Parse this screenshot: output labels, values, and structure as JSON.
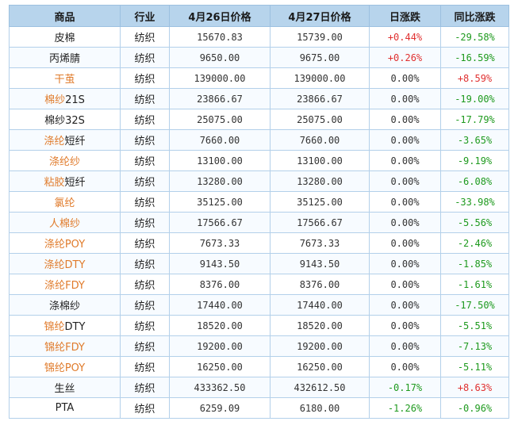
{
  "table": {
    "headers": [
      "商品",
      "行业",
      "4月26日价格",
      "4月27日价格",
      "日涨跌",
      "同比涨跌"
    ],
    "colors": {
      "header_bg": "#b7d4ec",
      "link_orange": "#e07b2b",
      "rise_red": "#e03030",
      "fall_green": "#1e9a1e"
    },
    "rows": [
      {
        "name": [
          {
            "t": "皮棉",
            "c": "black"
          }
        ],
        "industry": "纺织",
        "price_0426": "15670.83",
        "price_0427": "15739.00",
        "daily_change": "+0.44%",
        "yoy_change": "-29.58%"
      },
      {
        "name": [
          {
            "t": "丙烯腈",
            "c": "black"
          }
        ],
        "industry": "纺织",
        "price_0426": "9650.00",
        "price_0427": "9675.00",
        "daily_change": "+0.26%",
        "yoy_change": "-16.59%"
      },
      {
        "name": [
          {
            "t": "干茧",
            "c": "orange"
          }
        ],
        "industry": "纺织",
        "price_0426": "139000.00",
        "price_0427": "139000.00",
        "daily_change": "0.00%",
        "yoy_change": "+8.59%"
      },
      {
        "name": [
          {
            "t": "棉纱",
            "c": "orange"
          },
          {
            "t": "21S",
            "c": "black"
          }
        ],
        "industry": "纺织",
        "price_0426": "23866.67",
        "price_0427": "23866.67",
        "daily_change": "0.00%",
        "yoy_change": "-19.00%"
      },
      {
        "name": [
          {
            "t": "棉纱32S",
            "c": "black"
          }
        ],
        "industry": "纺织",
        "price_0426": "25075.00",
        "price_0427": "25075.00",
        "daily_change": "0.00%",
        "yoy_change": "-17.79%"
      },
      {
        "name": [
          {
            "t": "涤纶",
            "c": "orange"
          },
          {
            "t": "短纤",
            "c": "black"
          }
        ],
        "industry": "纺织",
        "price_0426": "7660.00",
        "price_0427": "7660.00",
        "daily_change": "0.00%",
        "yoy_change": "-3.65%"
      },
      {
        "name": [
          {
            "t": "涤纶纱",
            "c": "orange"
          }
        ],
        "industry": "纺织",
        "price_0426": "13100.00",
        "price_0427": "13100.00",
        "daily_change": "0.00%",
        "yoy_change": "-9.19%"
      },
      {
        "name": [
          {
            "t": "粘胶",
            "c": "orange"
          },
          {
            "t": "短纤",
            "c": "black"
          }
        ],
        "industry": "纺织",
        "price_0426": "13280.00",
        "price_0427": "13280.00",
        "daily_change": "0.00%",
        "yoy_change": "-6.08%"
      },
      {
        "name": [
          {
            "t": "氯纶",
            "c": "orange"
          }
        ],
        "industry": "纺织",
        "price_0426": "35125.00",
        "price_0427": "35125.00",
        "daily_change": "0.00%",
        "yoy_change": "-33.98%"
      },
      {
        "name": [
          {
            "t": "人棉纱",
            "c": "orange"
          }
        ],
        "industry": "纺织",
        "price_0426": "17566.67",
        "price_0427": "17566.67",
        "daily_change": "0.00%",
        "yoy_change": "-5.56%"
      },
      {
        "name": [
          {
            "t": "涤纶POY",
            "c": "orange"
          }
        ],
        "industry": "纺织",
        "price_0426": "7673.33",
        "price_0427": "7673.33",
        "daily_change": "0.00%",
        "yoy_change": "-2.46%"
      },
      {
        "name": [
          {
            "t": "涤纶DTY",
            "c": "orange"
          }
        ],
        "industry": "纺织",
        "price_0426": "9143.50",
        "price_0427": "9143.50",
        "daily_change": "0.00%",
        "yoy_change": "-1.85%"
      },
      {
        "name": [
          {
            "t": "涤纶FDY",
            "c": "orange"
          }
        ],
        "industry": "纺织",
        "price_0426": "8376.00",
        "price_0427": "8376.00",
        "daily_change": "0.00%",
        "yoy_change": "-1.61%"
      },
      {
        "name": [
          {
            "t": "涤棉纱",
            "c": "black"
          }
        ],
        "industry": "纺织",
        "price_0426": "17440.00",
        "price_0427": "17440.00",
        "daily_change": "0.00%",
        "yoy_change": "-17.50%"
      },
      {
        "name": [
          {
            "t": "锦纶",
            "c": "orange"
          },
          {
            "t": "DTY",
            "c": "black"
          }
        ],
        "industry": "纺织",
        "price_0426": "18520.00",
        "price_0427": "18520.00",
        "daily_change": "0.00%",
        "yoy_change": "-5.51%"
      },
      {
        "name": [
          {
            "t": "锦纶FDY",
            "c": "orange"
          }
        ],
        "industry": "纺织",
        "price_0426": "19200.00",
        "price_0427": "19200.00",
        "daily_change": "0.00%",
        "yoy_change": "-7.13%"
      },
      {
        "name": [
          {
            "t": "锦纶POY",
            "c": "orange"
          }
        ],
        "industry": "纺织",
        "price_0426": "16250.00",
        "price_0427": "16250.00",
        "daily_change": "0.00%",
        "yoy_change": "-5.11%"
      },
      {
        "name": [
          {
            "t": "生丝",
            "c": "black"
          }
        ],
        "industry": "纺织",
        "price_0426": "433362.50",
        "price_0427": "432612.50",
        "daily_change": "-0.17%",
        "yoy_change": "+8.63%"
      },
      {
        "name": [
          {
            "t": "PTA",
            "c": "black"
          }
        ],
        "industry": "纺织",
        "price_0426": "6259.09",
        "price_0427": "6180.00",
        "daily_change": "-1.26%",
        "yoy_change": "-0.96%"
      }
    ]
  }
}
